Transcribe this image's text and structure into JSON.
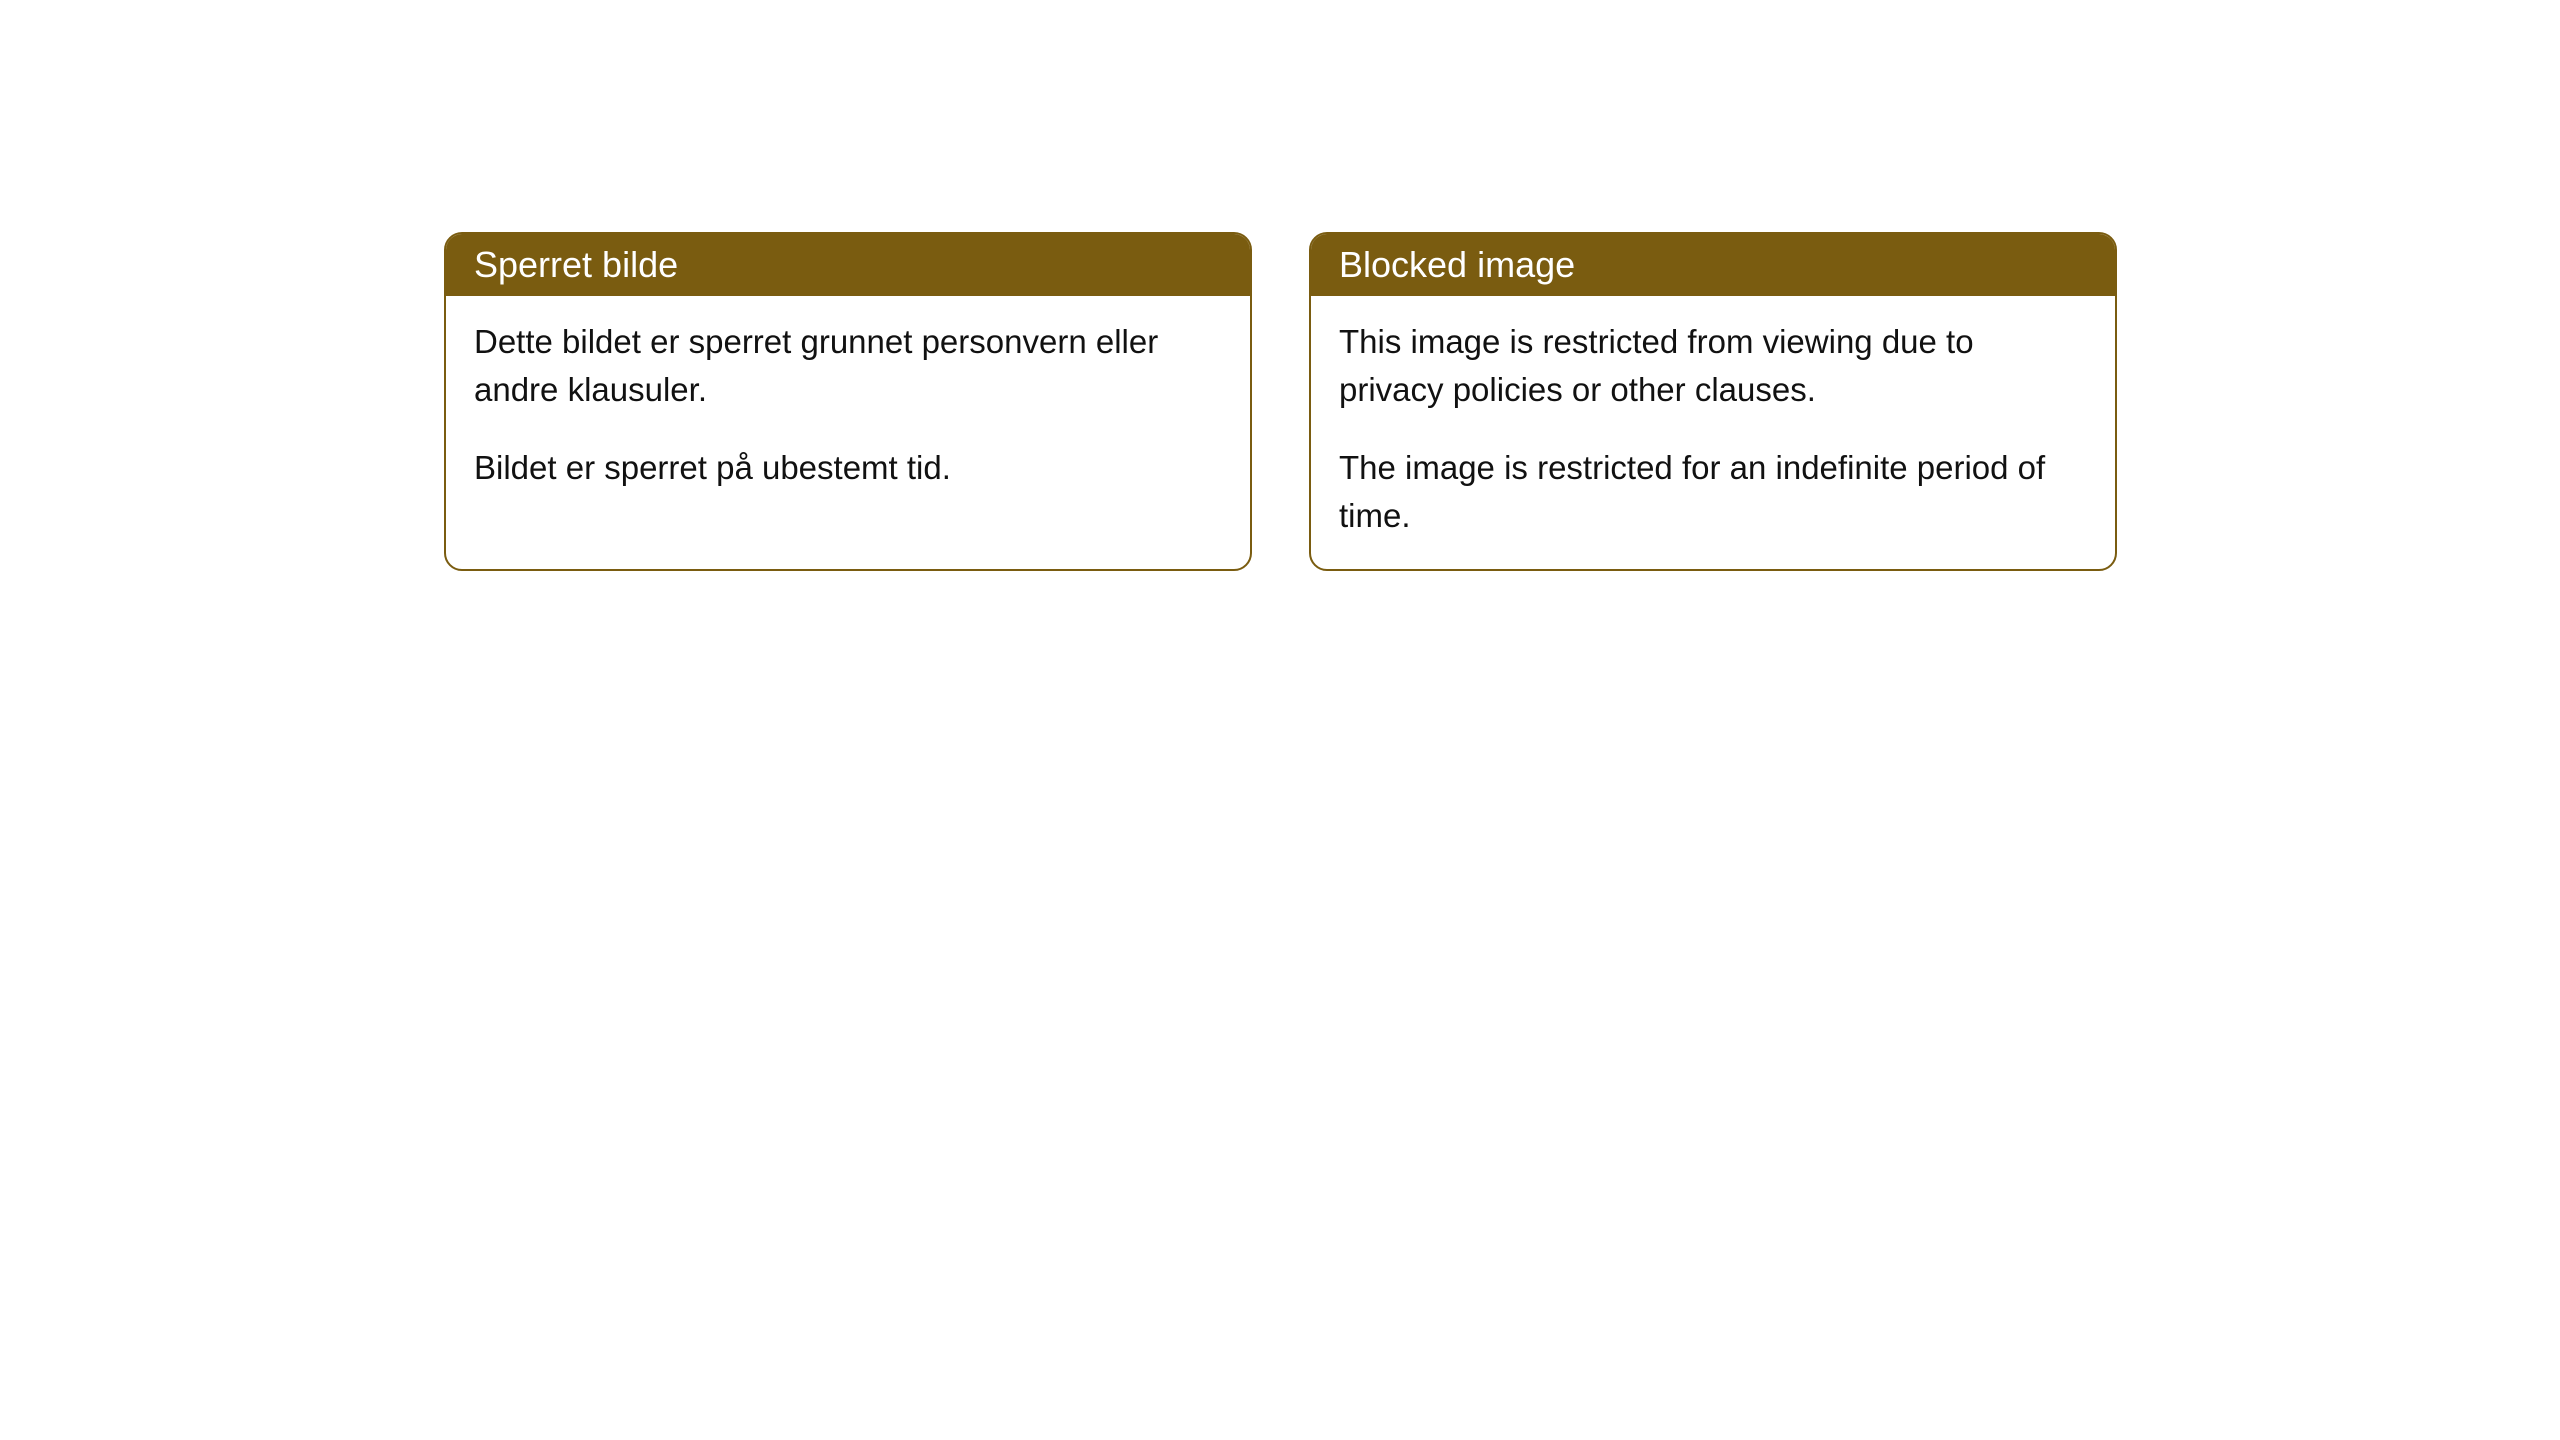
{
  "cards": [
    {
      "title": "Sperret bilde",
      "paragraph1": "Dette bildet er sperret grunnet personvern eller andre klausuler.",
      "paragraph2": "Bildet er sperret på ubestemt tid."
    },
    {
      "title": "Blocked image",
      "paragraph1": "This image is restricted from viewing due to privacy policies or other clauses.",
      "paragraph2": "The image is restricted for an indefinite period of time."
    }
  ],
  "styling": {
    "header_background": "#7a5c10",
    "header_text_color": "#ffffff",
    "border_color": "#7a5c10",
    "body_background": "#ffffff",
    "body_text_color": "#111111",
    "border_radius": 18,
    "title_fontsize": 36,
    "body_fontsize": 33
  }
}
